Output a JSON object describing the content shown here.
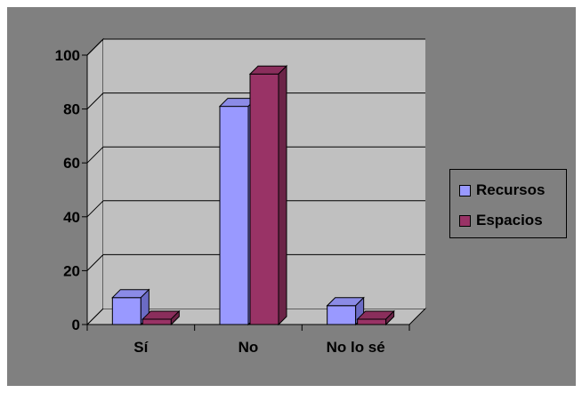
{
  "chart_data": {
    "type": "bar",
    "categories": [
      "Sí",
      "No",
      "No lo sé"
    ],
    "series": [
      {
        "name": "Recursos",
        "values": [
          10,
          81,
          7
        ],
        "color": "#9999ff",
        "top_color": "#8b8be6",
        "side_color": "#6b6bc4"
      },
      {
        "name": "Espacios",
        "values": [
          2,
          93,
          2
        ],
        "color": "#993366",
        "top_color": "#8a2e5c",
        "side_color": "#6b2447"
      }
    ],
    "y_ticks": [
      "0",
      "20",
      "40",
      "60",
      "80",
      "100"
    ],
    "ylim": [
      0,
      100
    ],
    "grid": true,
    "legend_position": "right",
    "colors": {
      "background": "#808080",
      "plot_wall": "#c0c0c0",
      "plot_floor": "#c0c0c0"
    }
  }
}
